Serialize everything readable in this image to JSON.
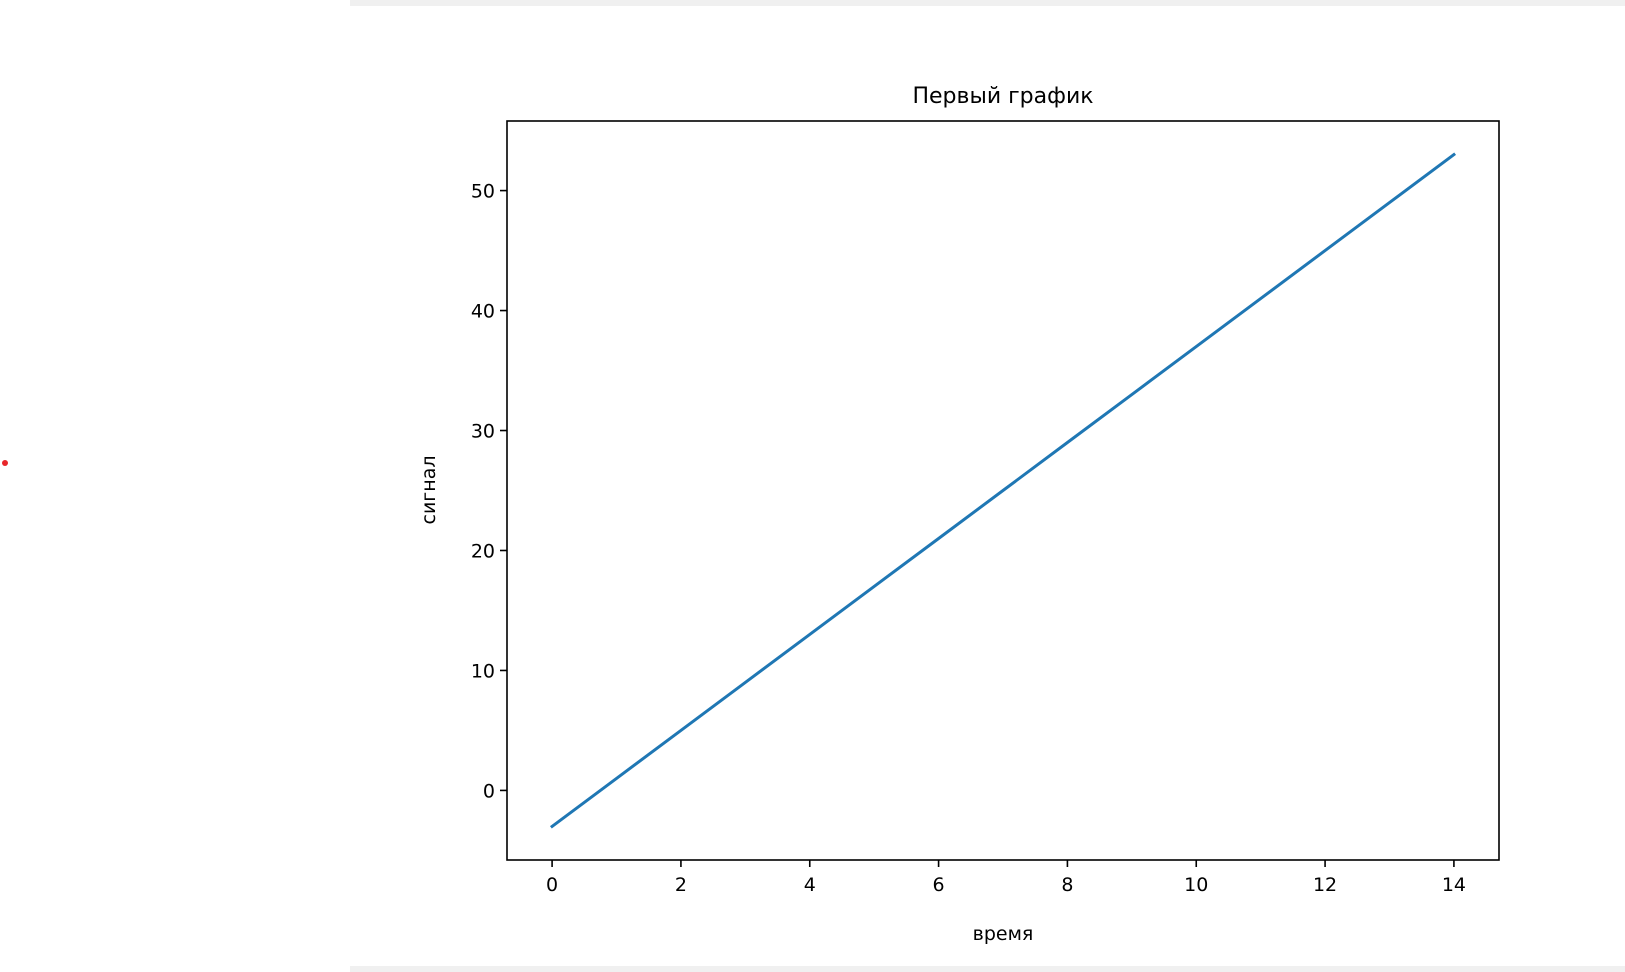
{
  "marker_color": "#e8262a",
  "chart_data": {
    "type": "line",
    "title": "Первый график",
    "xlabel": "время",
    "ylabel": "сигнал",
    "xlim": [
      -0.7,
      14.7
    ],
    "ylim": [
      -5.8,
      55.8
    ],
    "xticks": [
      0,
      2,
      4,
      6,
      8,
      10,
      12,
      14
    ],
    "yticks": [
      0,
      10,
      20,
      30,
      40,
      50
    ],
    "grid": false,
    "series": [
      {
        "color": "#1f77b4",
        "x": [
          0,
          1,
          2,
          3,
          4,
          5,
          6,
          7,
          8,
          9,
          10,
          11,
          12,
          13,
          14
        ],
        "y": [
          -3,
          1,
          5,
          9,
          13,
          17,
          21,
          25,
          29,
          33,
          37,
          41,
          45,
          49,
          53
        ]
      }
    ]
  }
}
